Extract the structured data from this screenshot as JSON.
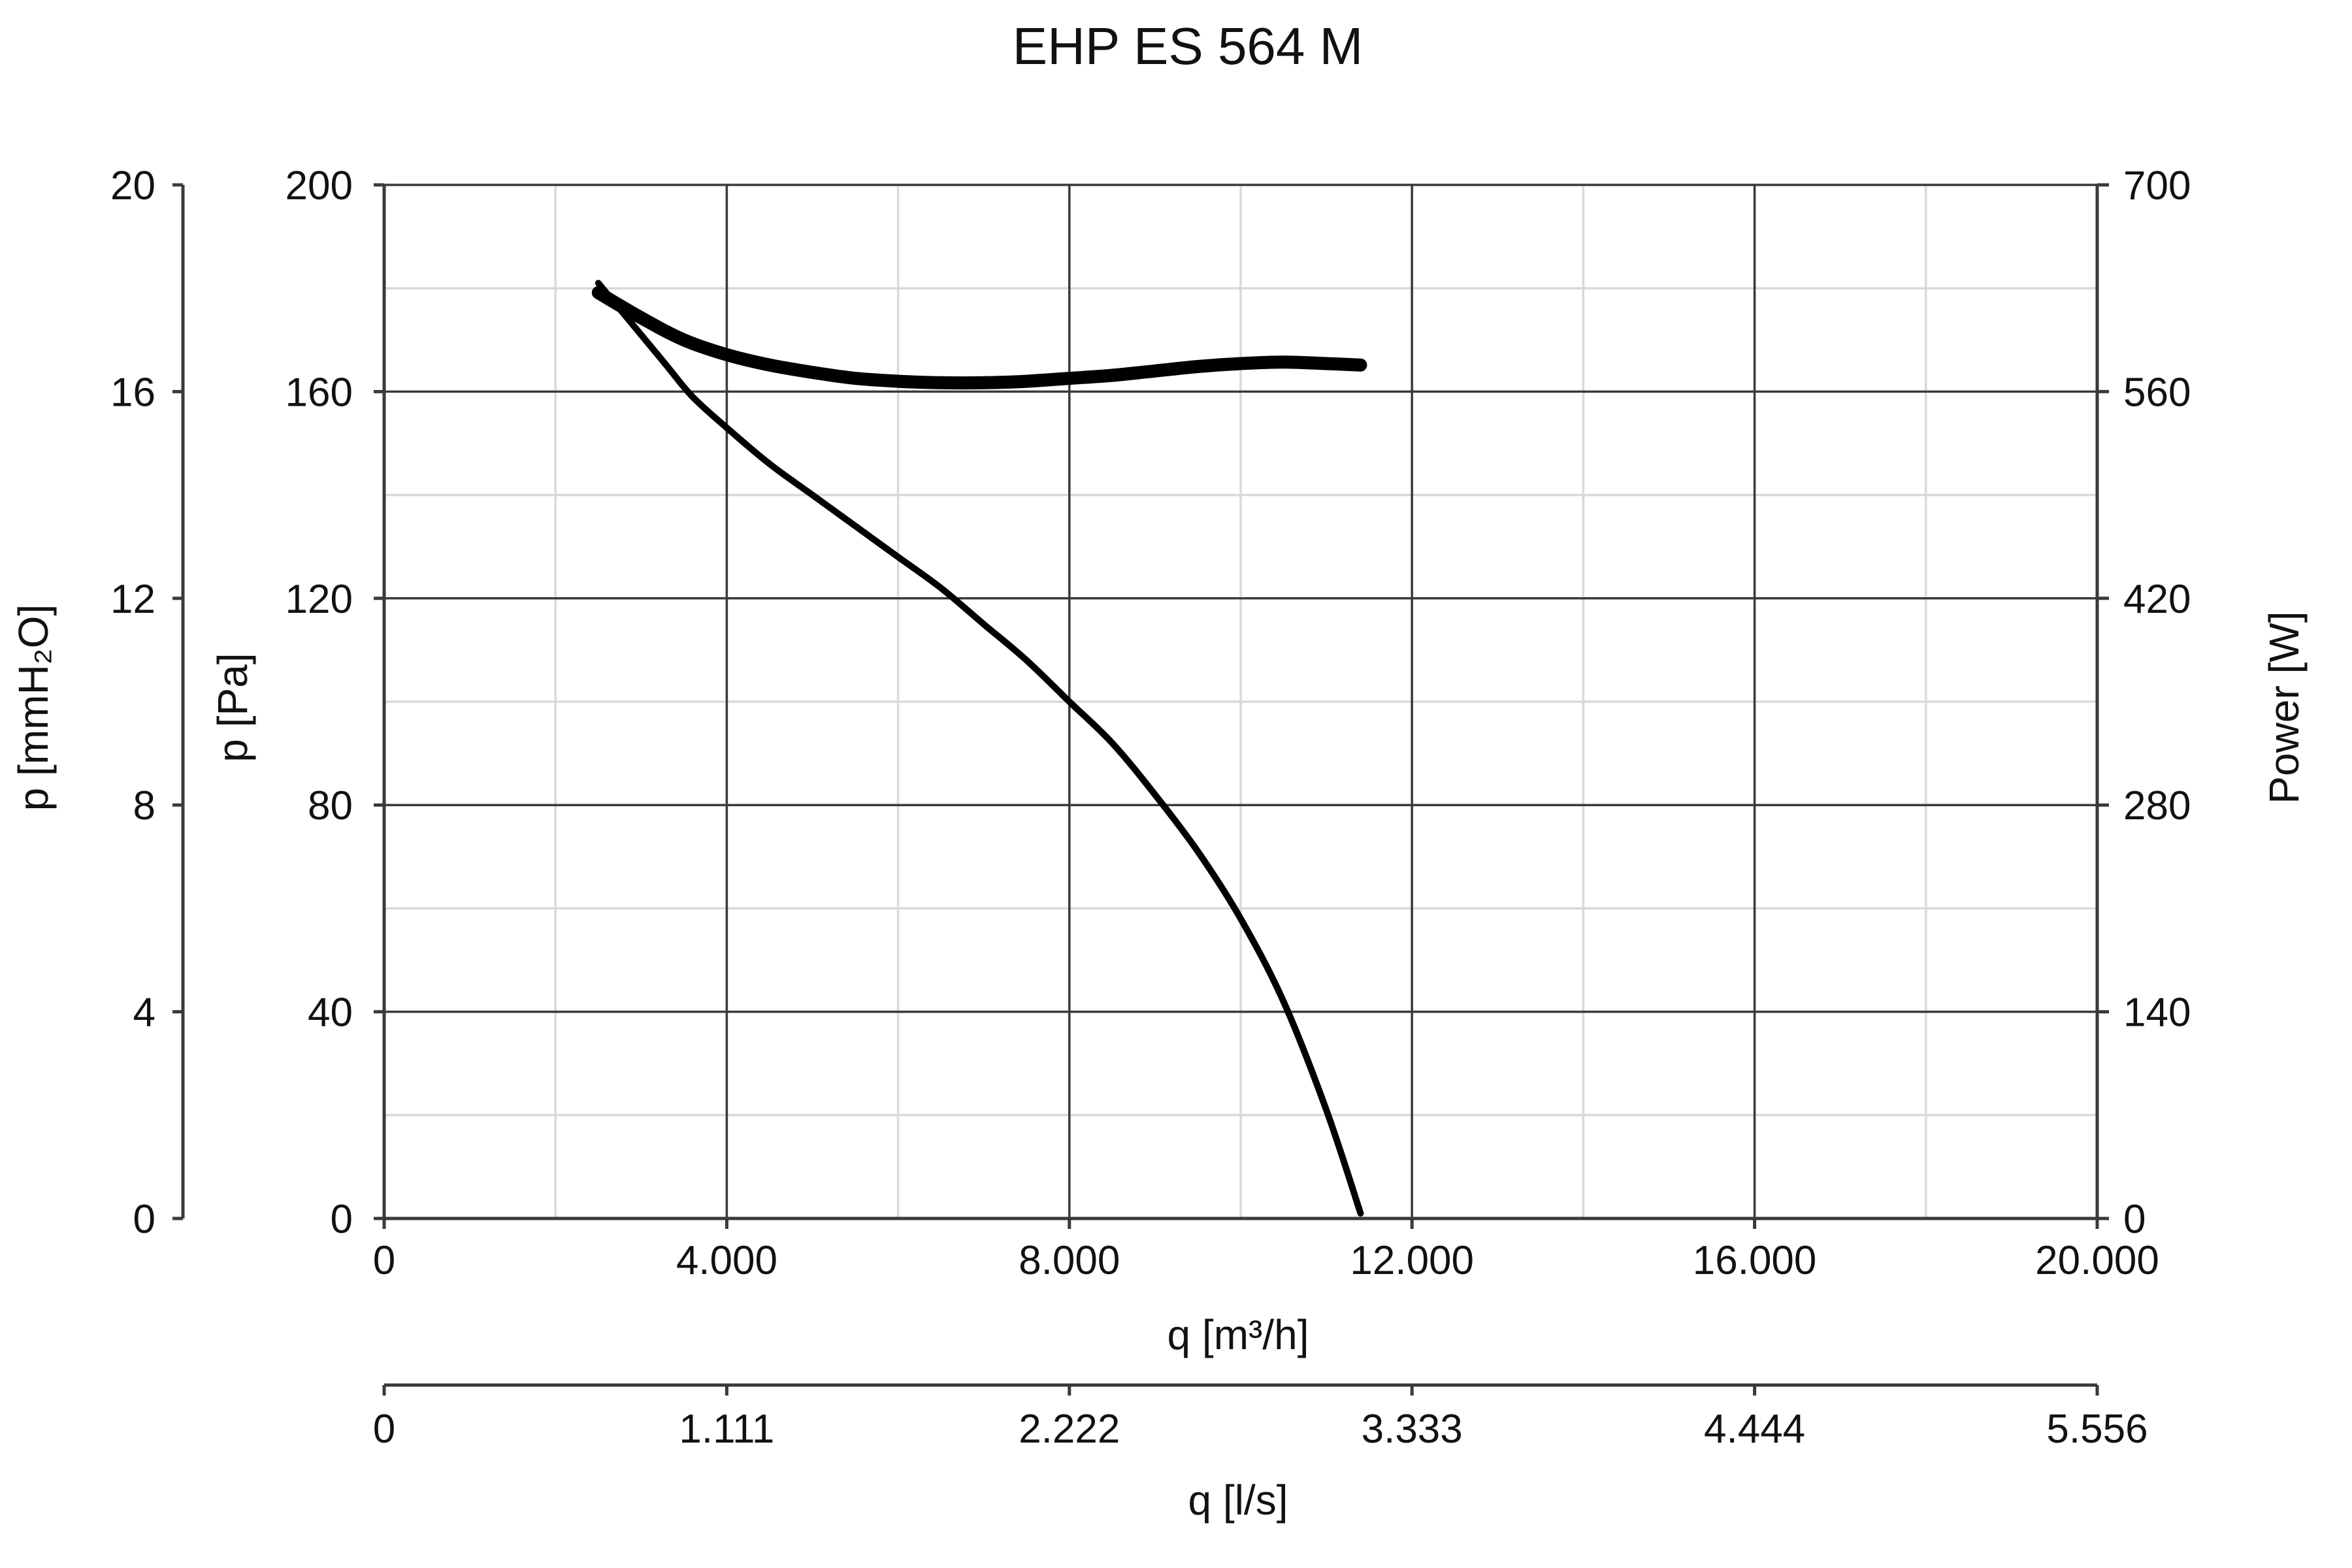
{
  "chart_data": {
    "type": "line",
    "title": "EHP ES 564 M",
    "xlabel": "q [m³/h]",
    "x2label": "q [l/s]",
    "ylabel": "p [Pa]",
    "ylabel_left_outer": "p [mmH₂O]",
    "ylabel_right": "Power [W]",
    "xlim": [
      0,
      20000
    ],
    "ylim": [
      0,
      200
    ],
    "y2lim": [
      0,
      700
    ],
    "x_ticks": [
      "0",
      "4.000",
      "8.000",
      "12.000",
      "16.000",
      "20.000"
    ],
    "x_tick_values": [
      0,
      4000,
      8000,
      12000,
      16000,
      20000
    ],
    "x2_ticks": [
      "0",
      "1.111",
      "2.222",
      "3.333",
      "4.444",
      "5.556"
    ],
    "y_ticks": [
      "0",
      "40",
      "80",
      "120",
      "160",
      "200"
    ],
    "y_tick_values": [
      0,
      40,
      80,
      120,
      160,
      200
    ],
    "y_outer_ticks": [
      "0",
      "4",
      "8",
      "12",
      "16",
      "20"
    ],
    "y_right_ticks": [
      "0",
      "140",
      "280",
      "420",
      "560",
      "700"
    ],
    "grid": true,
    "series": [
      {
        "axis": "pressure",
        "x": [
          2500,
          3000,
          3300,
          3600,
          4000,
          4500,
          5000,
          5500,
          6000,
          6500,
          7000,
          7500,
          8000,
          8500,
          9000,
          9500,
          10000,
          10500,
          11000,
          11400
        ],
        "y": [
          181,
          171,
          165,
          159,
          153,
          146,
          140,
          134,
          128,
          122,
          115,
          108,
          100,
          92,
          82,
          71,
          58,
          42,
          21,
          1
        ]
      },
      {
        "axis": "power",
        "x": [
          2500,
          3000,
          3500,
          4000,
          4500,
          5000,
          5500,
          6000,
          6500,
          7000,
          7500,
          8000,
          8500,
          9000,
          9500,
          10000,
          10500,
          11000,
          11400
        ],
        "y": [
          627,
          610,
          595,
          585,
          578,
          573,
          569,
          567,
          566,
          566,
          567,
          569,
          571,
          574,
          577,
          579,
          580,
          579,
          578
        ]
      }
    ]
  }
}
